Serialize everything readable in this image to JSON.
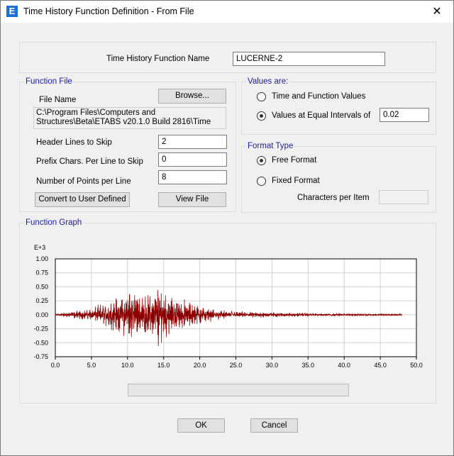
{
  "window": {
    "title": "Time History Function Definition  - From File",
    "app_icon": "E"
  },
  "function_name": {
    "label": "Time History Function Name",
    "value": "LUCERNE-2"
  },
  "function_file": {
    "legend": "Function File",
    "file_name_label": "File Name",
    "browse_label": "Browse...",
    "path": "C:\\Program Files\\Computers and Structures\\Beta\\ETABS v20.1.0 Build 2816\\Time",
    "header_lines_label": "Header Lines to Skip",
    "header_lines_value": "2",
    "prefix_chars_label": "Prefix Chars. Per Line to Skip",
    "prefix_chars_value": "0",
    "points_per_line_label": "Number of Points per Line",
    "points_per_line_value": "8",
    "convert_label": "Convert to User Defined",
    "view_file_label": "View File"
  },
  "values_are": {
    "legend": "Values are:",
    "option_time_label": "Time and Function Values",
    "option_equal_label": "Values at Equal Intervals of",
    "selected": "equal",
    "interval_value": "0.02"
  },
  "format_type": {
    "legend": "Format Type",
    "free_label": "Free Format",
    "fixed_label": "Fixed Format",
    "selected": "free",
    "chars_per_item_label": "Characters per Item",
    "chars_per_item_value": ""
  },
  "function_graph": {
    "legend": "Function Graph"
  },
  "chart_data": {
    "type": "line",
    "ylabel_exponent": "E+3",
    "xlim": [
      0,
      50
    ],
    "ylim": [
      -0.75,
      1.0
    ],
    "x_ticks": [
      "0.0",
      "5.0",
      "10.0",
      "15.0",
      "20.0",
      "25.0",
      "30.0",
      "35.0",
      "40.0",
      "45.0",
      "50.0"
    ],
    "y_ticks": [
      "1.00",
      "0.75",
      "0.50",
      "0.25",
      "0.00",
      "-0.25",
      "-0.50",
      "-0.75"
    ],
    "grid": true,
    "series_color": "#8b0000",
    "duration": 48,
    "envelope": [
      [
        0,
        0.02
      ],
      [
        1,
        0.03
      ],
      [
        2,
        0.05
      ],
      [
        3,
        0.07
      ],
      [
        4,
        0.08
      ],
      [
        5,
        0.1
      ],
      [
        6,
        0.14
      ],
      [
        7,
        0.2
      ],
      [
        8,
        0.27
      ],
      [
        9,
        0.33
      ],
      [
        10,
        0.42
      ],
      [
        10.5,
        0.5
      ],
      [
        11,
        0.38
      ],
      [
        12,
        0.3
      ],
      [
        13,
        0.36
      ],
      [
        14,
        0.45
      ],
      [
        14.5,
        0.55
      ],
      [
        15,
        0.42
      ],
      [
        16,
        0.33
      ],
      [
        17,
        0.28
      ],
      [
        18,
        0.22
      ],
      [
        19,
        0.2
      ],
      [
        20,
        0.17
      ],
      [
        21,
        0.11
      ],
      [
        22,
        0.08
      ],
      [
        24,
        0.06
      ],
      [
        26,
        0.05
      ],
      [
        28,
        0.05
      ],
      [
        30,
        0.04
      ],
      [
        34,
        0.03
      ],
      [
        38,
        0.02
      ],
      [
        42,
        0.02
      ],
      [
        48,
        0.015
      ]
    ]
  },
  "buttons": {
    "ok_label": "OK",
    "cancel_label": "Cancel"
  }
}
